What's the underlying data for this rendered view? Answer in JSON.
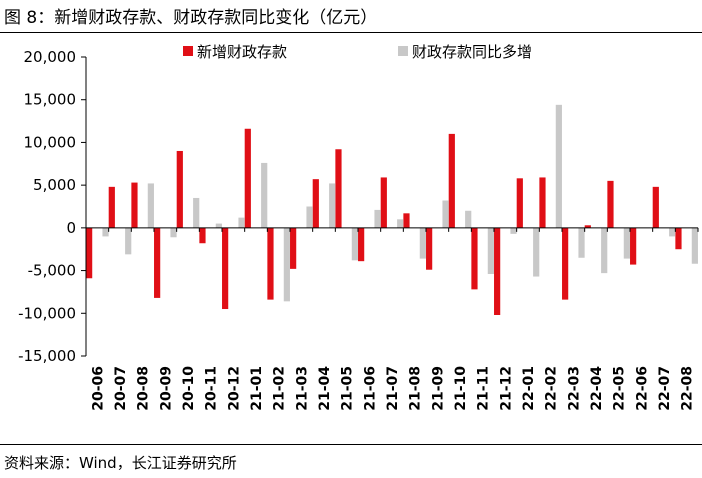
{
  "figure": {
    "title": "图 8：新增财政存款、财政存款同比变化（亿元）",
    "source": "资料来源：Wind，长江证券研究所"
  },
  "colors": {
    "series_new": "#e00f16",
    "series_yoy": "#c8c8c8",
    "axis": "#000000"
  },
  "chart_data": {
    "type": "bar",
    "title": "",
    "xlabel": "",
    "ylabel": "",
    "ylim": [
      -15000,
      20000
    ],
    "yticks": [
      -15000,
      -10000,
      -5000,
      0,
      5000,
      10000,
      15000,
      20000
    ],
    "ytick_labels": [
      "-15,000",
      "-10,000",
      "-5,000",
      "0",
      "5,000",
      "10,000",
      "15,000",
      "20,000"
    ],
    "grid": false,
    "legend_position": "top",
    "categories": [
      "20-06",
      "20-07",
      "20-08",
      "20-09",
      "20-10",
      "20-11",
      "20-12",
      "21-01",
      "21-02",
      "21-03",
      "21-04",
      "21-05",
      "21-06",
      "21-07",
      "21-08",
      "21-09",
      "21-10",
      "21-11",
      "21-12",
      "22-01",
      "22-02",
      "22-03",
      "22-04",
      "22-05",
      "22-06",
      "22-07",
      "22-08"
    ],
    "series": [
      {
        "name": "新增财政存款",
        "values": [
          -5900,
          4800,
          5300,
          -8200,
          9000,
          -1800,
          -9500,
          11600,
          -8400,
          -4800,
          5700,
          9200,
          -3900,
          5900,
          1700,
          -4900,
          11000,
          -7200,
          -10200,
          5800,
          5900,
          -8400,
          300,
          5500,
          -4300,
          4800,
          -2500
        ]
      },
      {
        "name": "财政存款同比多增",
        "values": [
          -1000,
          -3100,
          5200,
          -1100,
          3500,
          500,
          1200,
          7600,
          -8600,
          2500,
          5200,
          -3800,
          2100,
          1000,
          -3600,
          3200,
          2000,
          -5400,
          -700,
          -5700,
          14400,
          -3500,
          -5300,
          -3600,
          0,
          -1000,
          -4200
        ]
      }
    ]
  }
}
